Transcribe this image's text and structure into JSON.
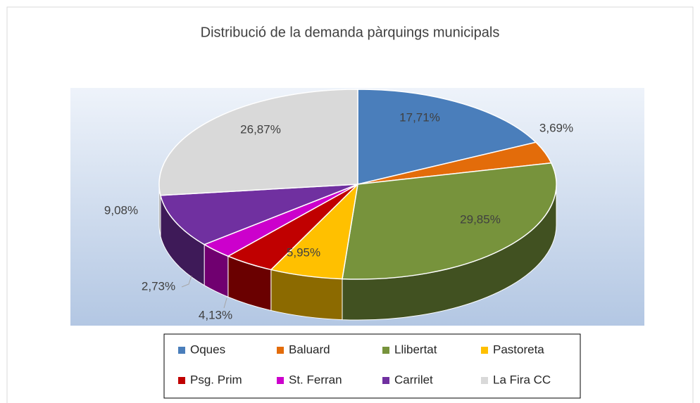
{
  "chart_data": {
    "type": "pie3d",
    "title": "Distribució de la demanda pàrquings municipals",
    "categories": [
      "Oques",
      "Baluard",
      "Llibertat",
      "Pastoreta",
      "Psg. Prim",
      "St. Ferran",
      "Carrilet",
      "La Fira CC"
    ],
    "values": [
      17.71,
      3.69,
      29.85,
      5.95,
      4.13,
      2.73,
      9.08,
      26.87
    ],
    "value_labels": [
      "17,71%",
      "3,69%",
      "29,85%",
      "5,95%",
      "4,13%",
      "2,73%",
      "9,08%",
      "26,87%"
    ],
    "colors": [
      "#4a7ebb",
      "#e36c0a",
      "#77933c",
      "#ffc000",
      "#c00000",
      "#cc00cc",
      "#7030a0",
      "#d9d9d9"
    ],
    "legend": "bottom"
  }
}
